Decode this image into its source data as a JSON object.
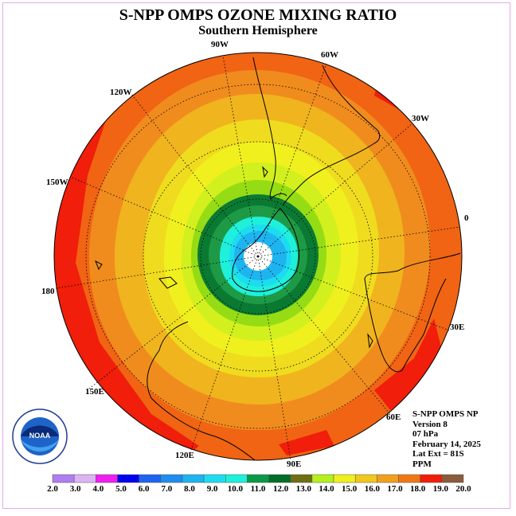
{
  "title": "S-NPP OMPS OZONE MIXING RATIO",
  "subtitle": "Southern Hemisphere",
  "longitude_labels": [
    "90W",
    "60W",
    "30W",
    "0",
    "30E",
    "60E",
    "90E",
    "120E",
    "150E",
    "180",
    "150W",
    "120W"
  ],
  "info": {
    "instrument": "S-NPP OMPS NP",
    "version": "Version 8",
    "pressure": "07 hPa",
    "date": "February 14, 2025",
    "lat_ext": "Lat Ext = 81S",
    "units": "PPM"
  },
  "logo": {
    "text": "NOAA",
    "ring_text": "NATIONAL OCEANIC AND ATMOSPHERIC ADMINISTRATION · U.S. DEPARTMENT OF COMMERCE"
  },
  "colorbar": {
    "labels": [
      "2.0",
      "3.0",
      "4.0",
      "5.0",
      "6.0",
      "7.0",
      "8.0",
      "9.0",
      "10.0",
      "11.0",
      "12.0",
      "13.0",
      "14.0",
      "15.0",
      "16.0",
      "17.0",
      "18.0",
      "19.0",
      "20.0"
    ],
    "colors": [
      "#b07ef0",
      "#dcb4f4",
      "#f01ef0",
      "#0000f0",
      "#1e64f0",
      "#1e8cf0",
      "#1eb4f0",
      "#1edcf0",
      "#1ef0dc",
      "#0a9a46",
      "#006e28",
      "#6e6e14",
      "#b4f01e",
      "#f0f01e",
      "#f0c81e",
      "#f0a01e",
      "#f07814",
      "#f01e0a",
      "#8c5a3c"
    ]
  }
}
